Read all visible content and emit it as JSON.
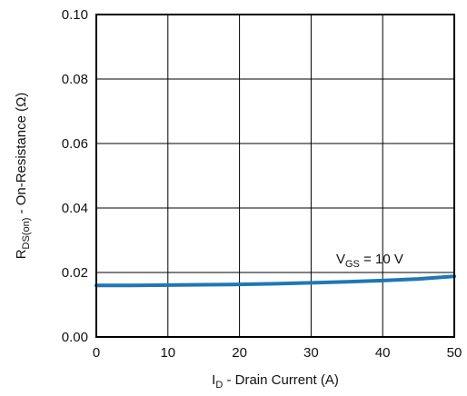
{
  "chart_data": {
    "type": "line",
    "title": "",
    "xlabel": {
      "main": "I",
      "sub": "D",
      "rest": " - Drain Current (A)"
    },
    "ylabel": {
      "main": "R",
      "sub": "DS(on)",
      "rest": " - On-Resistance (Ω)"
    },
    "xlim": [
      0,
      50
    ],
    "ylim": [
      0,
      0.1
    ],
    "x_ticks": [
      0,
      10,
      20,
      30,
      40,
      50
    ],
    "x_tick_labels": [
      "0",
      "10",
      "20",
      "30",
      "40",
      "50"
    ],
    "y_ticks": [
      0,
      0.02,
      0.04,
      0.06,
      0.08,
      0.1
    ],
    "y_tick_labels": [
      "0.00",
      "0.02",
      "0.04",
      "0.06",
      "0.08",
      "0.10"
    ],
    "grid": true,
    "series": [
      {
        "color": "#1f77b4",
        "x": [
          0,
          5,
          10,
          15,
          20,
          25,
          30,
          35,
          40,
          45,
          50
        ],
        "y": [
          0.016,
          0.016,
          0.0161,
          0.0162,
          0.0163,
          0.0165,
          0.0168,
          0.0171,
          0.0175,
          0.018,
          0.0188
        ]
      }
    ],
    "annotations": [
      {
        "main": "V",
        "sub": "GS",
        "rest": " = 10 V",
        "x": 33.5,
        "y": 0.0228
      }
    ]
  }
}
